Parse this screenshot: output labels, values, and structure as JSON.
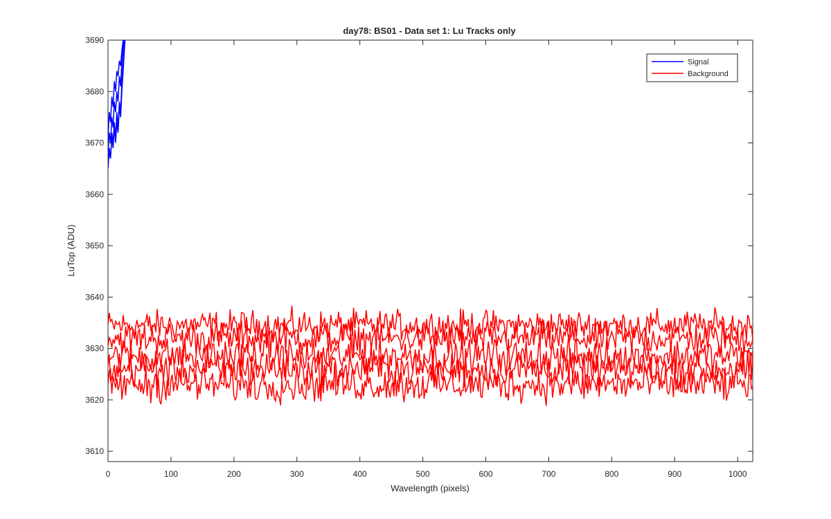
{
  "chart_data": {
    "type": "line",
    "title": "day78: BS01 - Data set 1: Lu Tracks only",
    "xlabel": "Wavelength (pixels)",
    "ylabel": "LuTop (ADU)",
    "xlim": [
      0,
      1024
    ],
    "ylim": [
      3608,
      3690
    ],
    "xticks": [
      0,
      100,
      200,
      300,
      400,
      500,
      600,
      700,
      800,
      900,
      1000
    ],
    "yticks": [
      3610,
      3620,
      3630,
      3640,
      3650,
      3660,
      3670,
      3680,
      3690
    ],
    "grid": false,
    "legend_position": "top-right",
    "series": [
      {
        "name": "Signal",
        "color": "#0000ff",
        "traces": [
          {
            "x": [
              0,
              2,
              4,
              6,
              8,
              10,
              12,
              14,
              16,
              18,
              20,
              22,
              24,
              26
            ],
            "y": [
              3665,
              3669,
              3667,
              3672,
              3670,
              3674,
              3671,
              3676,
              3673,
              3678,
              3676,
              3682,
              3686,
              3690
            ]
          },
          {
            "x": [
              0,
              2,
              4,
              6,
              8,
              10,
              12,
              14,
              16,
              18,
              20,
              22,
              24,
              25
            ],
            "y": [
              3668,
              3672,
              3670,
              3675,
              3673,
              3678,
              3676,
              3680,
              3678,
              3683,
              3681,
              3686,
              3689,
              3690
            ]
          },
          {
            "x": [
              0,
              2,
              4,
              6,
              8,
              10,
              12,
              14,
              16,
              18,
              20,
              22,
              24
            ],
            "y": [
              3671,
              3676,
              3674,
              3679,
              3677,
              3682,
              3680,
              3684,
              3683,
              3686,
              3685,
              3688,
              3690
            ]
          },
          {
            "x": [
              0,
              2,
              4,
              6,
              8,
              10,
              12,
              14,
              16,
              18,
              20,
              22,
              24,
              26,
              27
            ],
            "y": [
              3666,
              3668,
              3667,
              3671,
              3669,
              3673,
              3670,
              3674,
              3672,
              3677,
              3675,
              3680,
              3684,
              3688,
              3690
            ]
          }
        ]
      },
      {
        "name": "Background",
        "color": "#ff0000",
        "bands": [
          {
            "center": 3634.5,
            "amplitude": 2.2
          },
          {
            "center": 3632.0,
            "amplitude": 2.4
          },
          {
            "center": 3628.5,
            "amplitude": 2.6
          },
          {
            "center": 3626.0,
            "amplitude": 2.6
          },
          {
            "center": 3623.0,
            "amplitude": 2.6
          }
        ]
      }
    ]
  }
}
